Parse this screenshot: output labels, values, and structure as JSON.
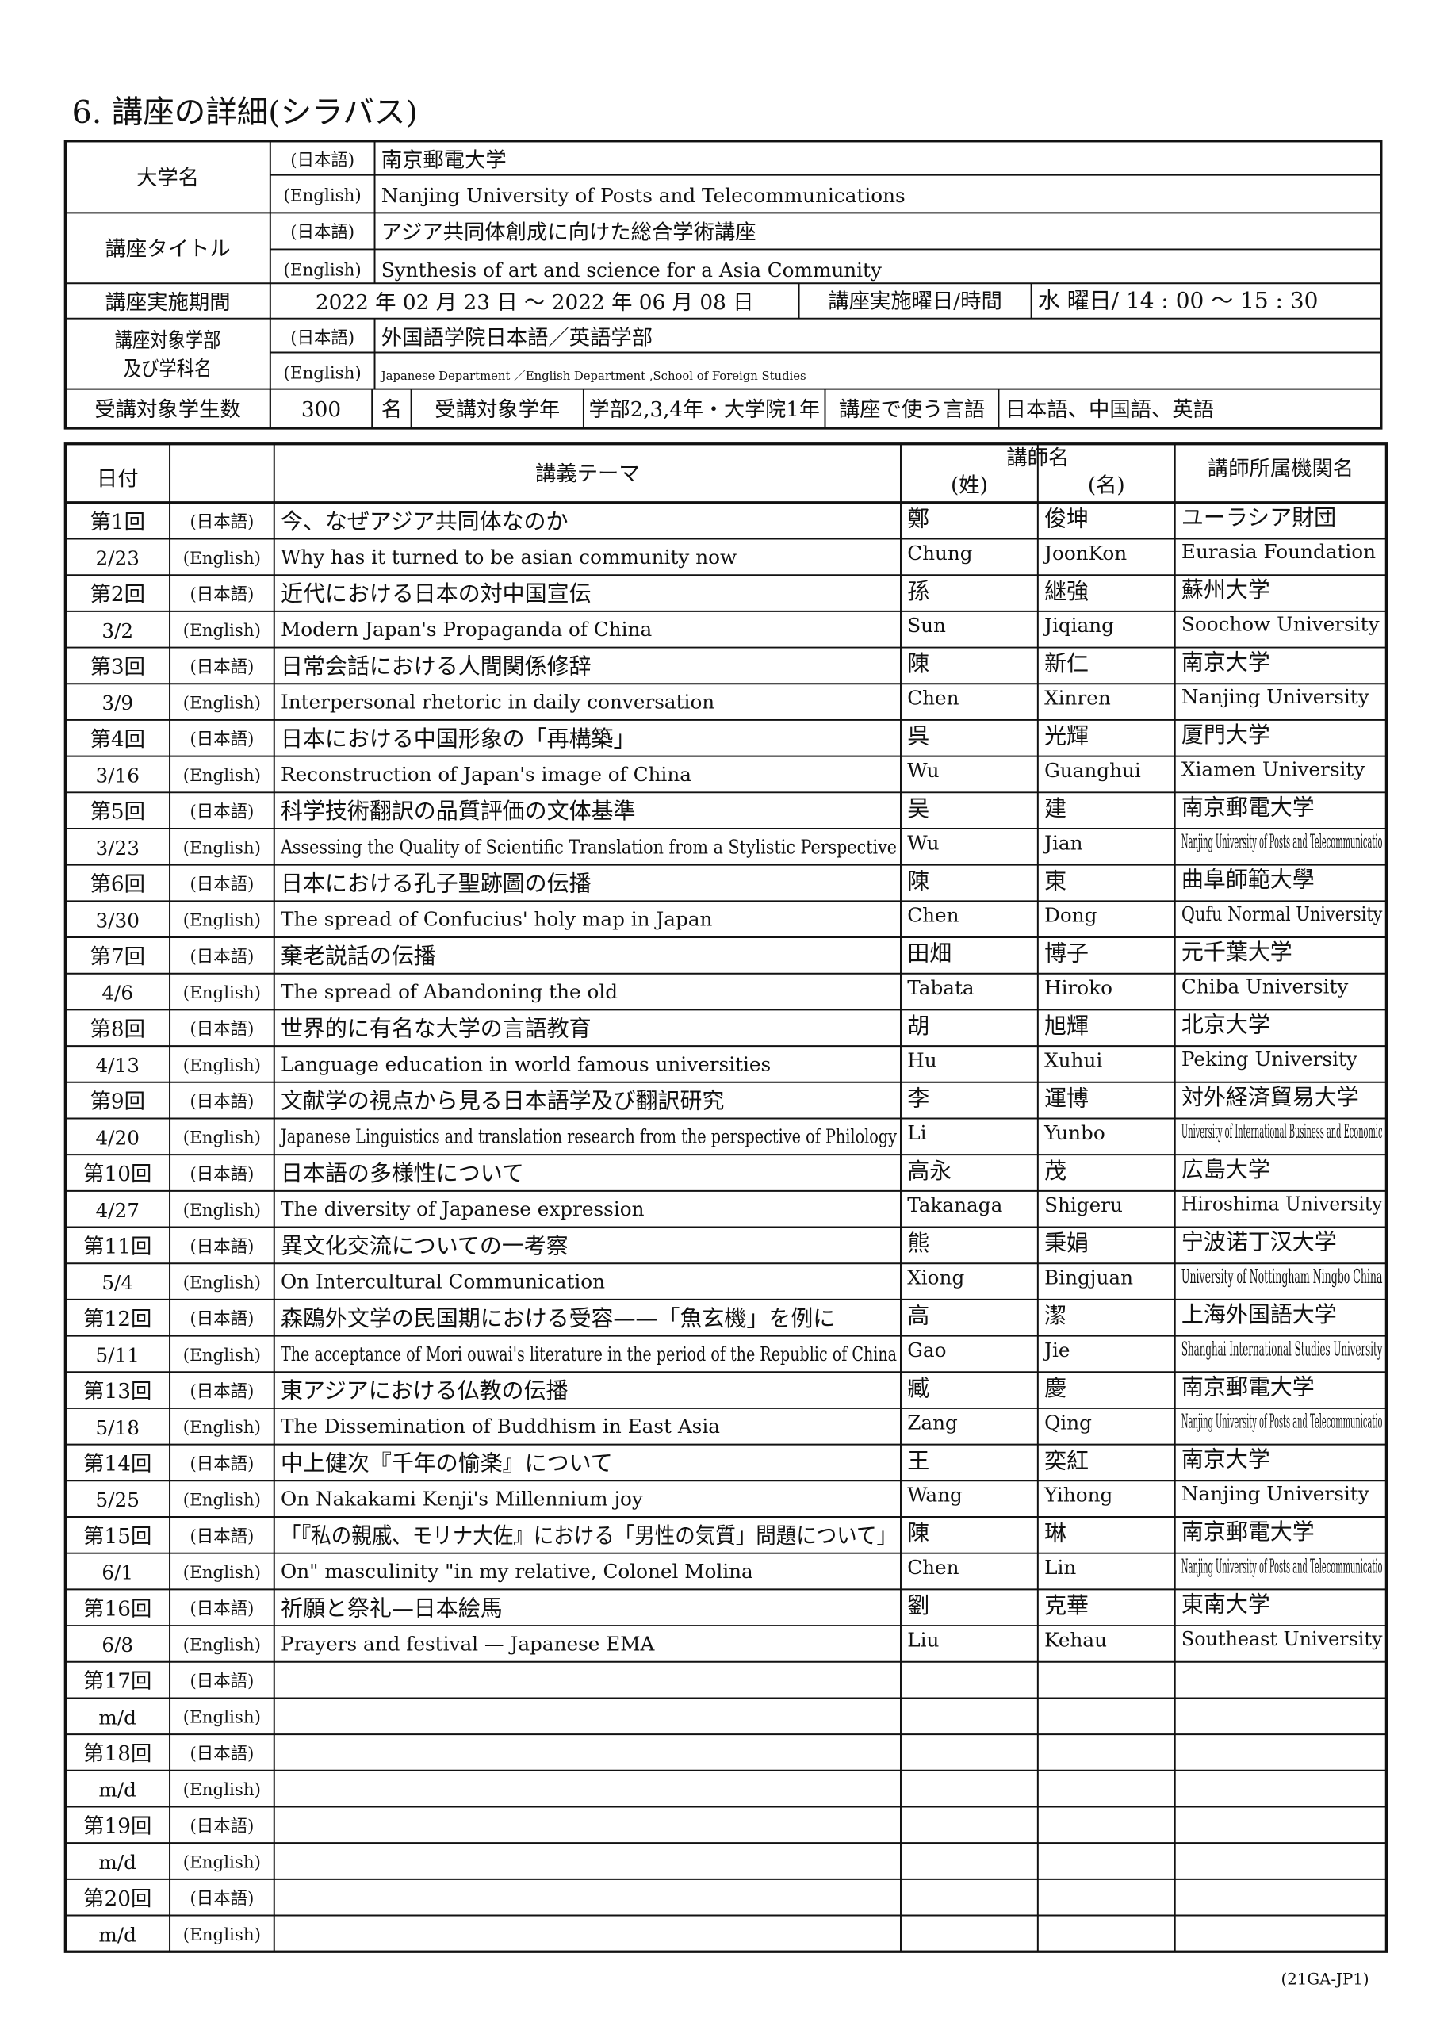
{
  "title": "6. 講座の詳細(シラバス)",
  "labels": {
    "ja": "(日本語)",
    "en": "(English)"
  },
  "info": {
    "university": {
      "label": "大学名",
      "ja": "南京郵電大学",
      "en": "Nanjing University of Posts and Telecommunications"
    },
    "course_title": {
      "label": "講座タイトル",
      "ja": "アジア共同体創成に向けた総合学術講座",
      "en": "Synthesis of art and science for a Asia Community"
    },
    "period": {
      "label": "講座実施期間",
      "dates": "2022 年 02 月 23 日 ～ 2022 年 06 月 08 日",
      "day_time_label": "講座実施曜日/時間",
      "day_time": "水 曜日/ 14 : 00 ～ 15 : 30"
    },
    "department": {
      "label": "講座対象学部 及び学科名",
      "ja": "外国語学院日本語／英語学部",
      "en": "Japanese Department ／English Department ,School of Foreign Studies"
    },
    "students": {
      "label": "受講対象学生数",
      "count": "300",
      "unit": "名",
      "grade_label": "受講対象学年",
      "grade": "学部2,3,4年・大学院1年",
      "language_label": "講座で使う言語",
      "language": "日本語、中国語、英語"
    }
  },
  "schedule": {
    "header": {
      "date": "日付",
      "theme": "講義テーマ",
      "lecturer": "講師名",
      "surname": "(姓)",
      "given": "(名)",
      "organization": "講師所属機関名"
    },
    "rows": [
      [
        "第1回",
        "2/23",
        "今、なぜアジア共同体なのか",
        "Why has it turned to be asian community now",
        "鄭",
        "俊坤",
        "Chung",
        "JoonKon",
        "ユーラシア財団",
        "Eurasia Foundation"
      ],
      [
        "第2回",
        "3/2",
        "近代における日本の対中国宣伝",
        "Modern Japan's Propaganda of China",
        "孫",
        "継強",
        "Sun",
        "Jiqiang",
        "蘇州大学",
        "Soochow University"
      ],
      [
        "第3回",
        "3/9",
        "日常会話における人間関係修辞",
        "Interpersonal rhetoric in daily conversation",
        "陳",
        "新仁",
        "Chen",
        "Xinren",
        "南京大学",
        "Nanjing University"
      ],
      [
        "第4回",
        "3/16",
        "日本における中国形象の「再構築」",
        "Reconstruction of Japan's image of China",
        "呉",
        "光輝",
        "Wu",
        "Guanghui",
        "厦門大学",
        "Xiamen University"
      ],
      [
        "第5回",
        "3/23",
        "科学技術翻訳の品質評価の文体基準",
        "Assessing the Quality of Scientific Translation from a Stylistic Perspective",
        "吴",
        "建",
        "Wu",
        "Jian",
        "南京郵電大学",
        "Nanjing University of Posts and Telecommunicatio"
      ],
      [
        "第6回",
        "3/30",
        "日本における孔子聖跡圖の伝播",
        "The spread of Confucius' holy map in Japan",
        "陳",
        "東",
        "Chen",
        "Dong",
        "曲阜師範大學",
        "Qufu Normal University"
      ],
      [
        "第7回",
        "4/6",
        "棄老説話の伝播",
        "The spread of Abandoning the old",
        "田畑",
        "博子",
        "Tabata",
        "Hiroko",
        "元千葉大学",
        "Chiba University"
      ],
      [
        "第8回",
        "4/13",
        "世界的に有名な大学の言語教育",
        "Language education in world famous universities",
        "胡",
        "旭輝",
        "Hu",
        "Xuhui",
        "北京大学",
        "Peking University"
      ],
      [
        "第9回",
        "4/20",
        "文献学の視点から見る日本語学及び翻訳研究",
        "Japanese Linguistics and translation research from the perspective of Philology",
        "李",
        "運博",
        "Li",
        "Yunbo",
        "対外経済貿易大学",
        "University of International Business and Economic"
      ],
      [
        "第10回",
        "4/27",
        "日本語の多様性について",
        "The diversity of Japanese expression",
        "高永",
        "茂",
        "Takanaga",
        "Shigeru",
        "広島大学",
        "Hiroshima University"
      ],
      [
        "第11回",
        "5/4",
        "異文化交流についての一考察",
        "On Intercultural Communication",
        "熊",
        "秉娟",
        "Xiong",
        "Bingjuan",
        "宁波诺丁汉大学",
        "University of Nottingham Ningbo China"
      ],
      [
        "第12回",
        "5/11",
        "森鴎外文学の民国期における受容——「魚玄機」を例に",
        "The acceptance of Mori ouwai's literature in the period of the Republic of China",
        "高",
        "潔",
        "Gao",
        "Jie",
        "上海外国語大学",
        "Shanghai International Studies University"
      ],
      [
        "第13回",
        "5/18",
        "東アジアにおける仏教の伝播",
        "The Dissemination of Buddhism in East Asia",
        "臧",
        "慶",
        "Zang",
        "Qing",
        "南京郵電大学",
        "Nanjing University of Posts and Telecommunicatio"
      ],
      [
        "第14回",
        "5/25",
        "中上健次『千年の愉楽』について",
        "On Nakakami Kenji's Millennium joy",
        "王",
        "奕紅",
        "Wang",
        "Yihong",
        "南京大学",
        "Nanjing University"
      ],
      [
        "第15回",
        "6/1",
        "「『私の親戚、モリナ大佐』における「男性の気質」問題について」",
        "On\" masculinity \"in my relative, Colonel Molina",
        "陳",
        "琳",
        "Chen",
        "Lin",
        "南京郵電大学",
        "Nanjing University of Posts and Telecommunicatio"
      ],
      [
        "第16回",
        "6/8",
        "祈願と祭礼—日本絵馬",
        "Prayers and festival — Japanese EMA",
        "劉",
        "克華",
        "Liu",
        "Kehau",
        "東南大学",
        "Southeast University"
      ],
      [
        "第17回",
        "m/d"
      ],
      [
        "第18回",
        "m/d"
      ],
      [
        "第19回",
        "m/d"
      ],
      [
        "第20回",
        "m/d"
      ]
    ]
  },
  "footer": "(21GA-JP1)"
}
